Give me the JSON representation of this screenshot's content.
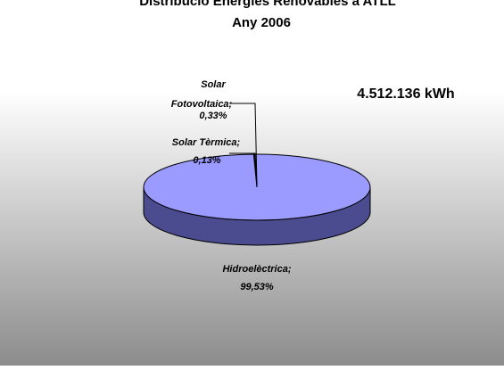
{
  "chart_data": {
    "type": "pie",
    "title_line1": "Distribució Energies Renovables a ATLL",
    "title_line2": "Any 2006",
    "total_label": "4.512.136 kWh",
    "slices": [
      {
        "name": "Hidroelèctrica",
        "value": 99.53,
        "label_name": "Hidroelèctrica;",
        "label_value": "99,53%"
      },
      {
        "name": "Solar Fotovoltaica",
        "value": 0.33,
        "label_name_line1": "Solar",
        "label_name_line2": "Fotovoltaica;",
        "label_value": "0,33%"
      },
      {
        "name": "Solar Tèrmica",
        "value": 0.13,
        "label_name": "Solar Tèrmica;",
        "label_value": "0,13%"
      }
    ],
    "colors": {
      "hydro_top": "#9a9aff",
      "hydro_side": "#4b4b8f",
      "background_top": "#ffffff",
      "background_bottom": "#8c8c8c",
      "outline": "#000000"
    }
  }
}
